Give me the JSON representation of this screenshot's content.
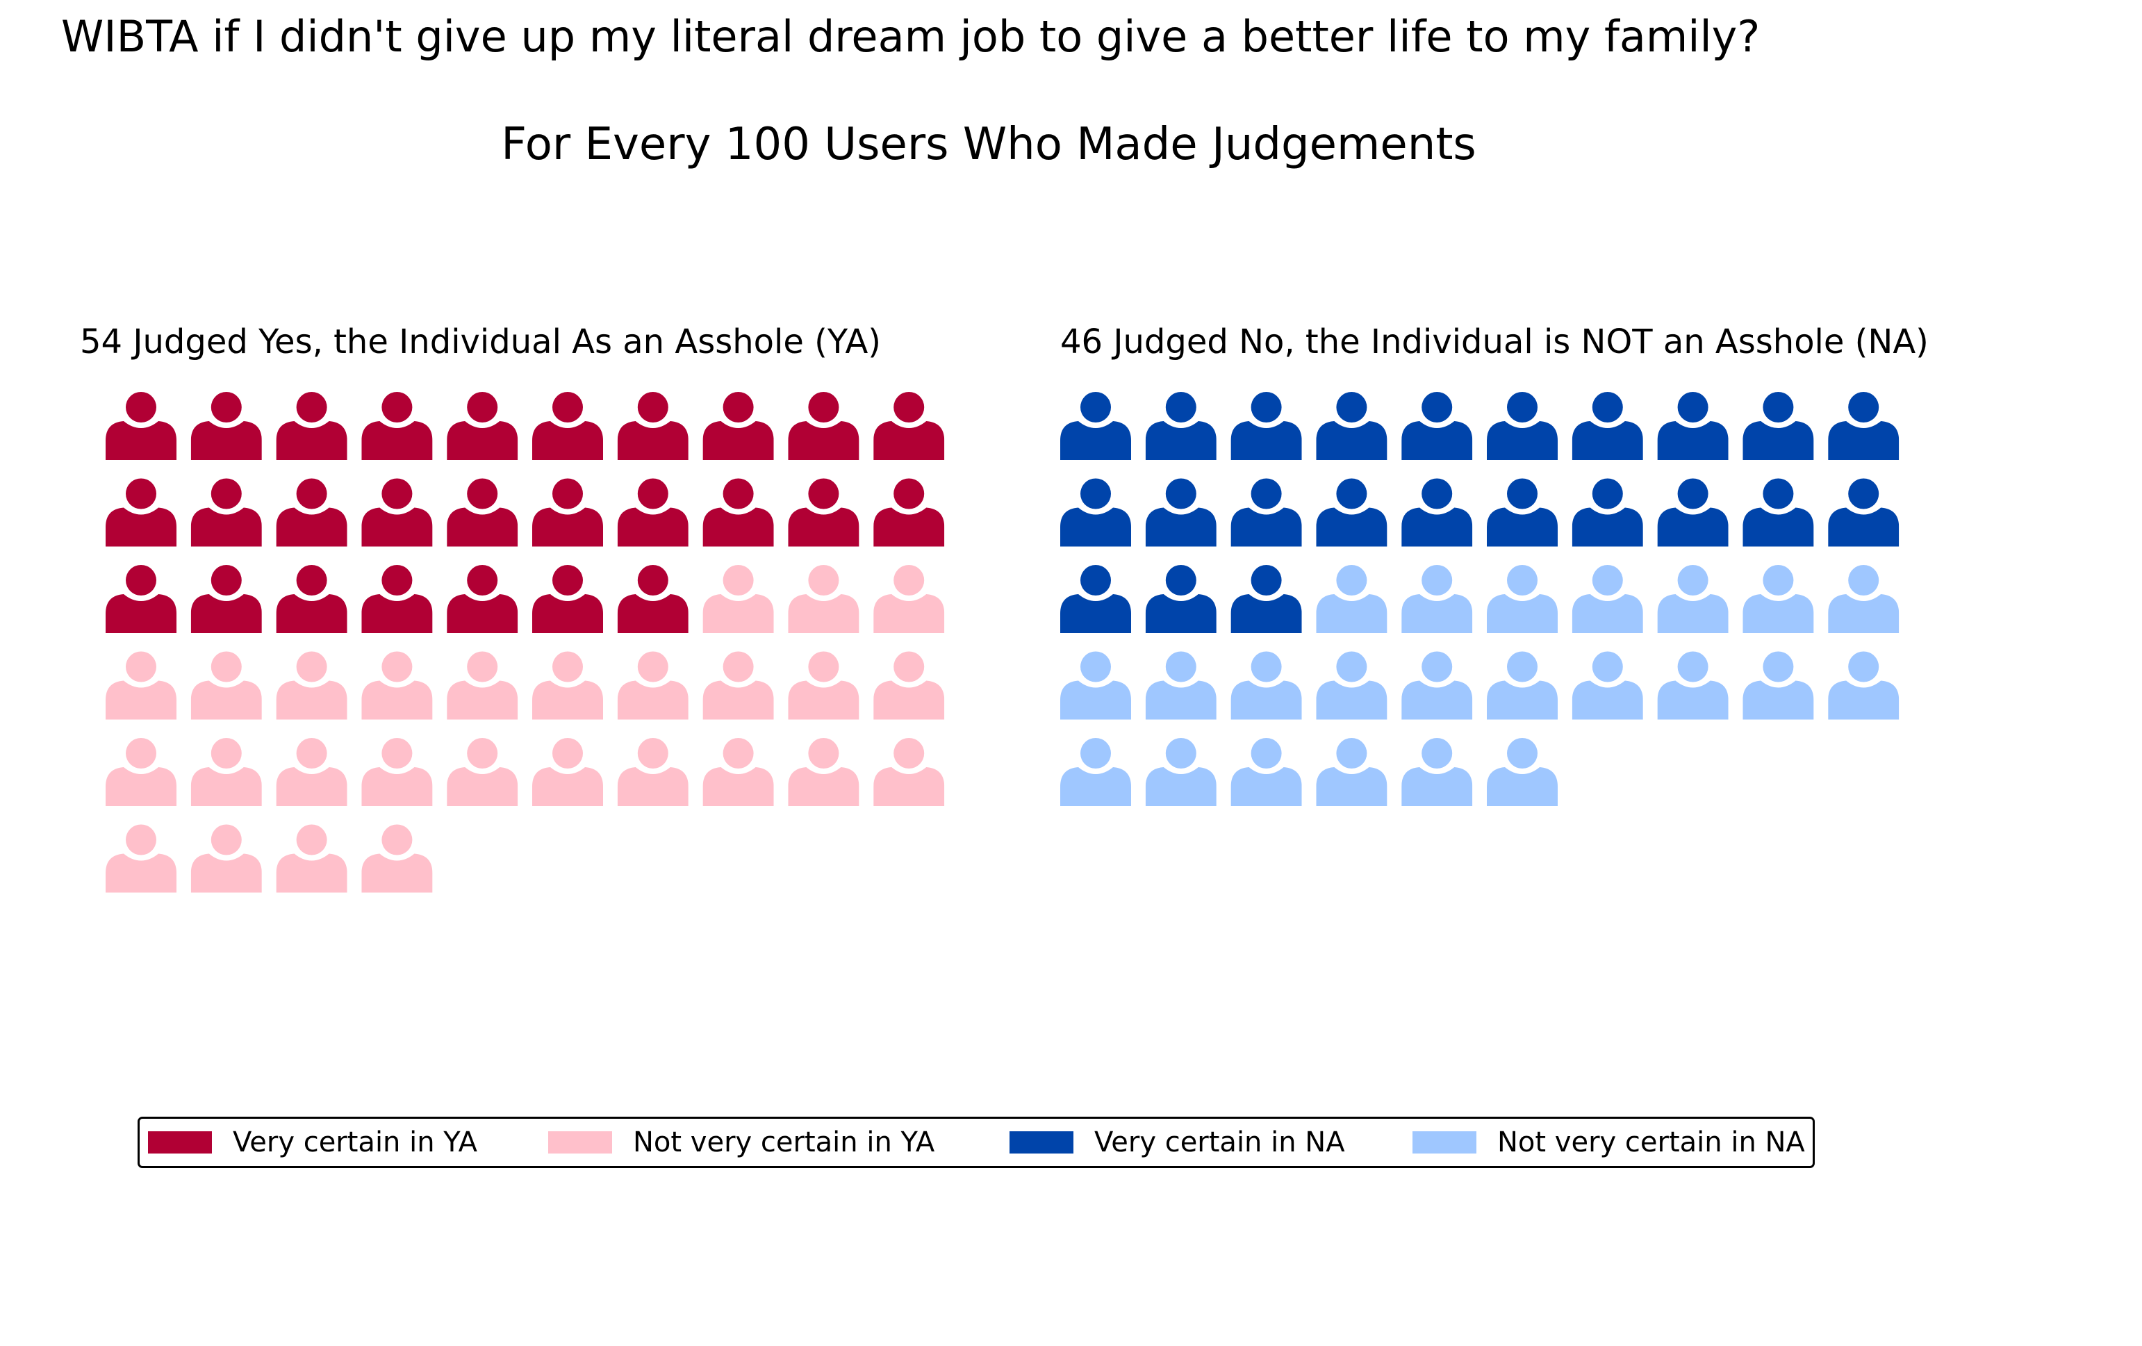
{
  "chart_data": {
    "type": "pictogram",
    "title": "WIBTA if I didn't give up my literal dream job to give a better life to my family?",
    "subtitle": "For Every 100 Users Who Made Judgements",
    "icon": "person-icon",
    "panels": [
      {
        "title": "54 Judged Yes, the Individual As an Asshole (YA)",
        "total": 54,
        "segments": [
          {
            "name": "Very certain in YA",
            "count": 27,
            "color": "#b10034"
          },
          {
            "name": "Not very certain in YA",
            "count": 27,
            "color": "#ffc0cb"
          }
        ]
      },
      {
        "title": "46 Judged No, the Individual is NOT an Asshole (NA)",
        "total": 46,
        "segments": [
          {
            "name": "Very certain in NA",
            "count": 23,
            "color": "#0044aa"
          },
          {
            "name": "Not very certain in NA",
            "count": 23,
            "color": "#9fc7ff"
          }
        ]
      }
    ],
    "icons_per_row": 10,
    "legend": {
      "placement": "bottom",
      "entries": [
        {
          "label": "Very certain in YA",
          "color": "#b10034"
        },
        {
          "label": "Not very certain in YA",
          "color": "#ffc0cb"
        },
        {
          "label": "Very certain in NA",
          "color": "#0044aa"
        },
        {
          "label": "Not very certain in NA",
          "color": "#9fc7ff"
        }
      ]
    }
  }
}
